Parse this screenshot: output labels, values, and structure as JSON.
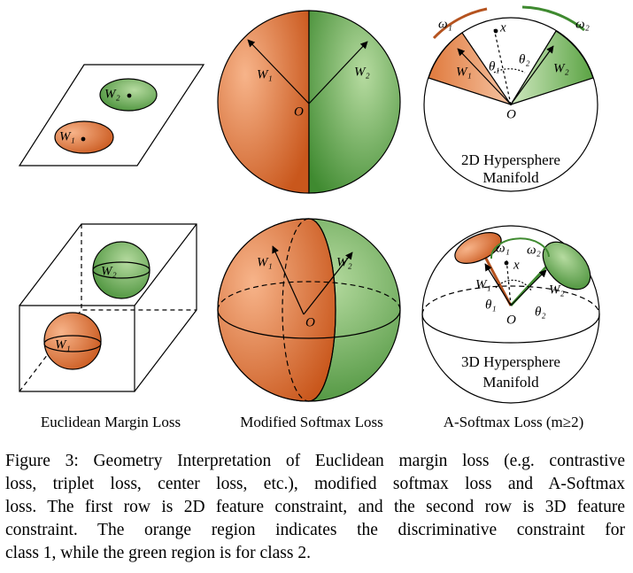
{
  "figure": {
    "panels": {
      "euclidean_2d": {
        "w1": "W₁",
        "w2": "W₂"
      },
      "softmax_2d": {
        "w1": "W₁",
        "w2": "W₂",
        "origin": "O"
      },
      "asoftmax_2d": {
        "w1": "W₁",
        "w2": "W₂",
        "origin": "O",
        "x": "x",
        "omega1": "ω₁",
        "omega2": "ω₂",
        "theta1": "θ₁",
        "theta2": "θ₂",
        "label_line1": "2D Hypersphere",
        "label_line2": "Manifold"
      },
      "euclidean_3d": {
        "w1": "W₁",
        "w2": "W₂"
      },
      "softmax_3d": {
        "w1": "W₁",
        "w2": "W₂",
        "origin": "O"
      },
      "asoftmax_3d": {
        "w1": "W₁",
        "w2": "W₂",
        "origin": "O",
        "x": "x",
        "omega1": "ω₁",
        "omega2": "ω₂",
        "theta1": "θ₁",
        "theta2": "θ₂",
        "label_line1": "3D Hypersphere",
        "label_line2": "Manifold"
      }
    },
    "column_labels": [
      "Euclidean Margin Loss",
      "Modified Softmax Loss",
      "A-Softmax Loss (m≥2)"
    ]
  },
  "caption": {
    "lines": [
      "Figure 3: Geometry Interpretation of Euclidean margin loss (e.g. contrastive",
      "loss, triplet loss, center loss, etc.), modified softmax loss and A-Softmax",
      "loss. The first row is 2D feature constraint, and the second row is 3D feature",
      "constraint.  The orange region indicates the discriminative constraint for",
      "class 1, while the green region is for class 2."
    ]
  }
}
